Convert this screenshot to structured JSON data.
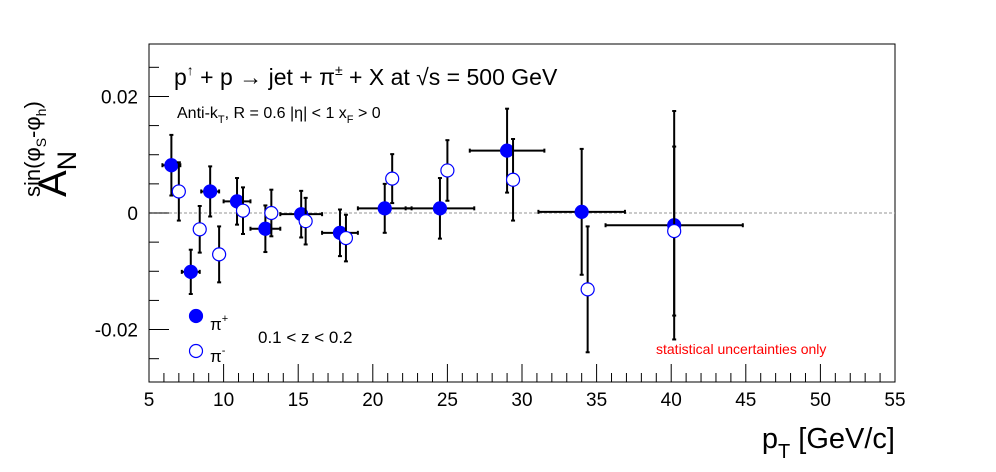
{
  "chart_data": {
    "type": "scatter",
    "title": {
      "parts": [
        "p",
        "↑",
        " + p → jet + π",
        "±",
        " + X at ",
        "√s",
        " = 500 GeV"
      ]
    },
    "subtitle": {
      "parts": [
        "Anti-k",
        "T",
        ", R = 0.6   |η| < 1   x",
        "F",
        " > 0"
      ]
    },
    "xlabel": {
      "main": "p",
      "sub": "T",
      "rest": " [GeV/c]"
    },
    "ylabel": {
      "main": "A",
      "sub": "N",
      "sup": "sin(φ",
      "supS": "S",
      "supMid": "-φ",
      "supH": "h",
      "supEnd": ")"
    },
    "xlim": [
      5,
      55
    ],
    "ylim": [
      -0.029,
      0.029
    ],
    "x_ticks": [
      {
        "v": 5,
        "label": "5"
      },
      {
        "v": 10,
        "label": "10"
      },
      {
        "v": 15,
        "label": "15"
      },
      {
        "v": 20,
        "label": "20"
      },
      {
        "v": 25,
        "label": "25"
      },
      {
        "v": 30,
        "label": "30"
      },
      {
        "v": 35,
        "label": "35"
      },
      {
        "v": 40,
        "label": "40"
      },
      {
        "v": 45,
        "label": "45"
      },
      {
        "v": 50,
        "label": "50"
      },
      {
        "v": 55,
        "label": "55"
      }
    ],
    "y_ticks": [
      {
        "v": 0.02,
        "label": "0.02"
      },
      {
        "v": 0,
        "label": "0"
      },
      {
        "v": -0.02,
        "label": "-0.02"
      }
    ],
    "zero_line": 0,
    "legend": {
      "placement": "bottom-left",
      "entries": [
        {
          "label": "π",
          "sup": "+",
          "marker": "filled"
        },
        {
          "label": "π",
          "sup": "-",
          "marker": "open"
        }
      ]
    },
    "annotations": {
      "z_range": "0.1 < z < 0.2",
      "note": "statistical uncertainties only",
      "note_color": "#ff0000"
    },
    "colors": {
      "marker": "#0000ff",
      "error": "#000000",
      "zero_line": "#aaaaaa"
    },
    "series": [
      {
        "name": "π+",
        "marker": "filled",
        "points": [
          {
            "x": 6.5,
            "y": 0.0082,
            "xerr": 0.6,
            "yerr": 0.0052
          },
          {
            "x": 7.8,
            "y": -0.0101,
            "xerr": 0.6,
            "yerr": 0.0038
          },
          {
            "x": 9.1,
            "y": 0.0037,
            "xerr": 0.6,
            "yerr": 0.0043
          },
          {
            "x": 10.9,
            "y": 0.002,
            "xerr": 0.9,
            "yerr": 0.004
          },
          {
            "x": 12.8,
            "y": -0.0027,
            "xerr": 1.0,
            "yerr": 0.004
          },
          {
            "x": 15.2,
            "y": -0.0002,
            "xerr": 1.4,
            "yerr": 0.004
          },
          {
            "x": 17.8,
            "y": -0.0034,
            "xerr": 1.2,
            "yerr": 0.004
          },
          {
            "x": 20.8,
            "y": 0.0008,
            "xerr": 1.8,
            "yerr": 0.0042
          },
          {
            "x": 24.5,
            "y": 0.0008,
            "xerr": 2.3,
            "yerr": 0.0052
          },
          {
            "x": 29.0,
            "y": 0.0107,
            "xerr": 2.5,
            "yerr": 0.0072
          },
          {
            "x": 34.0,
            "y": 0.0002,
            "xerr": 2.9,
            "yerr": 0.0108
          },
          {
            "x": 40.2,
            "y": -0.0021,
            "xerr": 4.6,
            "yerr": 0.0196
          }
        ]
      },
      {
        "name": "π-",
        "marker": "open",
        "points": [
          {
            "x": 7.0,
            "y": 0.0037,
            "xerr": 0,
            "yerr": 0.005
          },
          {
            "x": 8.4,
            "y": -0.0028,
            "xerr": 0,
            "yerr": 0.004
          },
          {
            "x": 9.7,
            "y": -0.0071,
            "xerr": 0,
            "yerr": 0.0048
          },
          {
            "x": 11.3,
            "y": 0.0004,
            "xerr": 0,
            "yerr": 0.004
          },
          {
            "x": 13.2,
            "y": 0.0,
            "xerr": 0,
            "yerr": 0.004
          },
          {
            "x": 15.5,
            "y": -0.0014,
            "xerr": 0,
            "yerr": 0.004
          },
          {
            "x": 18.2,
            "y": -0.0043,
            "xerr": 0,
            "yerr": 0.004
          },
          {
            "x": 21.3,
            "y": 0.0059,
            "xerr": 0,
            "yerr": 0.0042
          },
          {
            "x": 25.0,
            "y": 0.0073,
            "xerr": 0,
            "yerr": 0.0052
          },
          {
            "x": 29.4,
            "y": 0.0057,
            "xerr": 0,
            "yerr": 0.007
          },
          {
            "x": 34.4,
            "y": -0.0131,
            "xerr": 0,
            "yerr": 0.0108
          },
          {
            "x": 40.2,
            "y": -0.0031,
            "xerr": 0,
            "yerr": 0.0145
          }
        ]
      }
    ]
  }
}
